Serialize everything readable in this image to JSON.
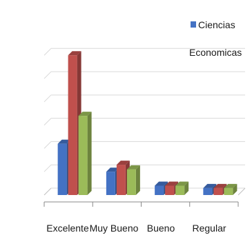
{
  "chart_data": {
    "type": "bar",
    "style": "3d-clustered-column",
    "categories": [
      "Excelente",
      "Muy Bueno",
      "Bueno",
      "Regular"
    ],
    "series": [
      {
        "name": "Ciencias Economicas",
        "color": "#4472C4",
        "values": [
          11,
          5,
          2,
          1.5
        ]
      },
      {
        "name": "",
        "color": "#C0504D",
        "values": [
          30,
          6.5,
          2,
          1.5
        ]
      },
      {
        "name": "",
        "color": "#9BBB59",
        "values": [
          17,
          5.5,
          2,
          1.5
        ]
      }
    ],
    "ylim": [
      0,
      35
    ],
    "gridlines": true,
    "legend": {
      "position": "top-right",
      "entries": [
        "Ciencias",
        "Economicas"
      ]
    }
  }
}
